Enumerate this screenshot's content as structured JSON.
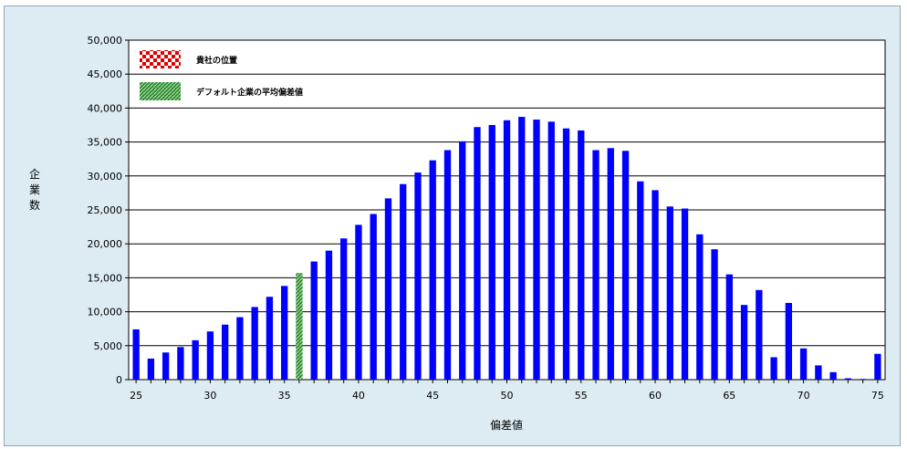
{
  "chart_data": {
    "type": "bar",
    "xlabel": "偏差値",
    "ylabel": "企業数",
    "ylim": [
      0,
      50000
    ],
    "yticks": [
      0,
      5000,
      10000,
      15000,
      20000,
      25000,
      30000,
      35000,
      40000,
      45000,
      50000
    ],
    "ytick_labels": [
      "0",
      "5,000",
      "10,000",
      "15,000",
      "20,000",
      "25,000",
      "30,000",
      "35,000",
      "40,000",
      "45,000",
      "50,000"
    ],
    "xticks": [
      25,
      30,
      35,
      40,
      45,
      50,
      55,
      60,
      65,
      70,
      75
    ],
    "xtick_labels": [
      "25",
      "30",
      "35",
      "40",
      "45",
      "50",
      "55",
      "60",
      "65",
      "70",
      "75"
    ],
    "grid": true,
    "legend_placement": "top-left",
    "series_color": "#0000ff",
    "highlight_color": "#2e8b2e",
    "x": [
      25,
      26,
      27,
      28,
      29,
      30,
      31,
      32,
      33,
      34,
      35,
      36,
      37,
      38,
      39,
      40,
      41,
      42,
      43,
      44,
      45,
      46,
      47,
      48,
      49,
      50,
      51,
      52,
      53,
      54,
      55,
      56,
      57,
      58,
      59,
      60,
      61,
      62,
      63,
      64,
      65,
      66,
      67,
      68,
      69,
      70,
      71,
      72,
      73,
      74,
      75
    ],
    "values": [
      7400,
      3100,
      4000,
      4800,
      5800,
      7100,
      8100,
      9200,
      10700,
      12200,
      13800,
      15700,
      17400,
      19000,
      20800,
      22800,
      24400,
      26700,
      28800,
      30500,
      32300,
      33800,
      35100,
      37200,
      37500,
      38200,
      38700,
      38300,
      38000,
      37000,
      36700,
      33800,
      34100,
      33700,
      29200,
      27900,
      25500,
      25200,
      21400,
      19200,
      15500,
      11000,
      13200,
      3300,
      11300,
      4600,
      2100,
      1100,
      200,
      100,
      3800
    ],
    "highlight_x": 36,
    "legend": [
      {
        "label": "貴社の位置",
        "pattern": "red-checker"
      },
      {
        "label": "デフォルト企業の平均偏差値",
        "pattern": "green-hatch"
      }
    ]
  }
}
